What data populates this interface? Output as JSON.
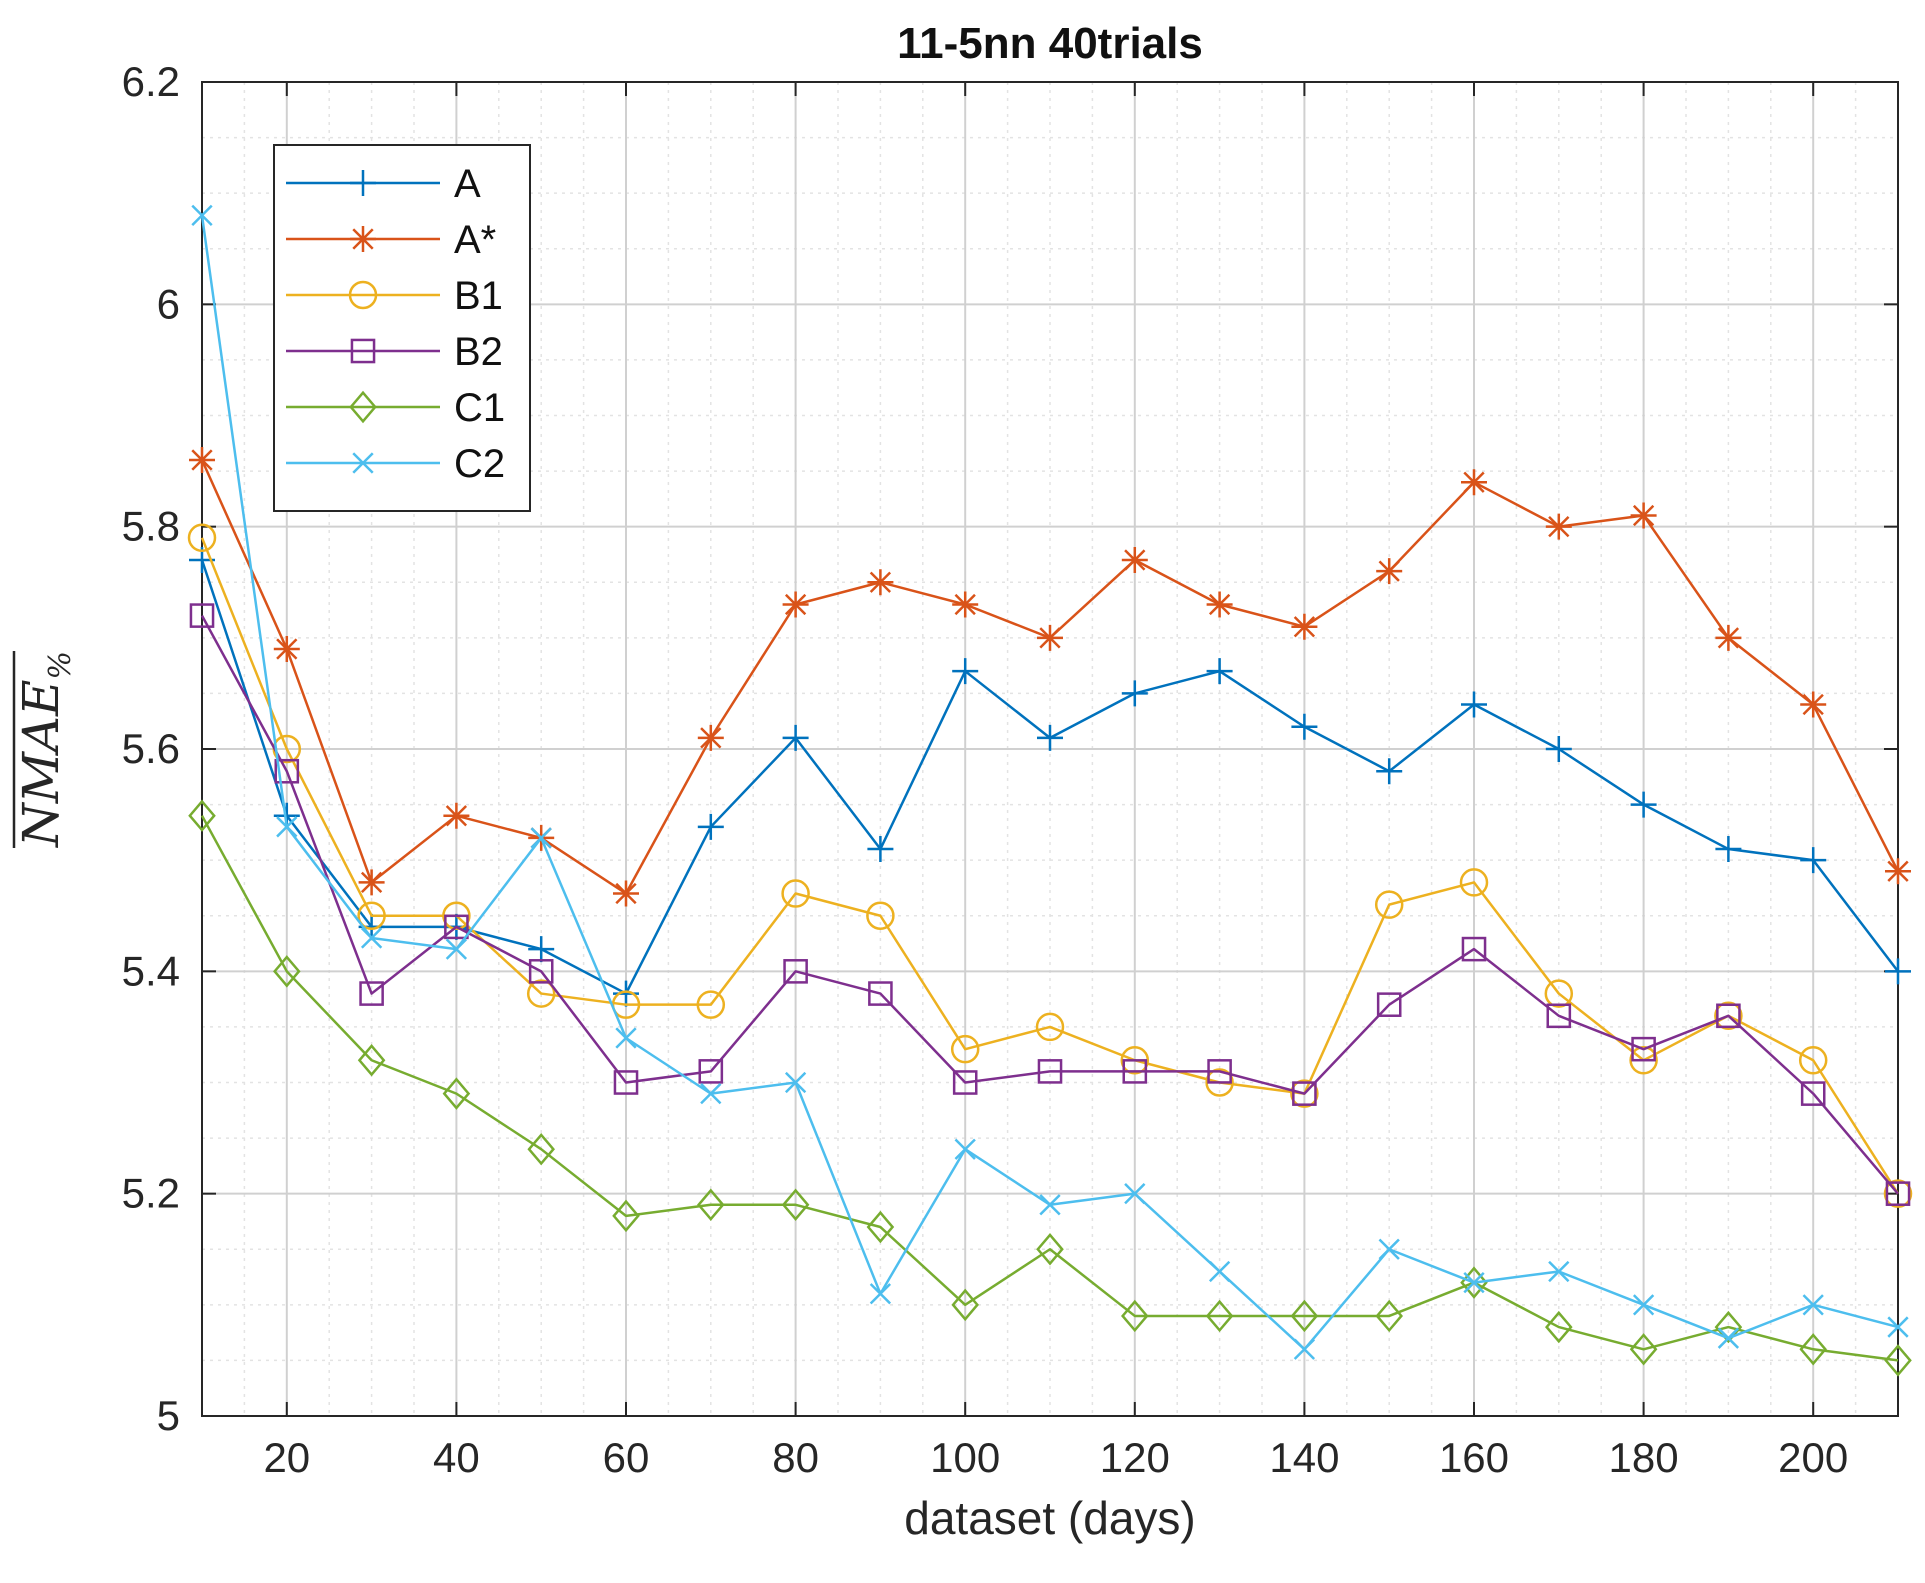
{
  "chart_data": {
    "type": "line",
    "title": "11-5nn 40trials",
    "xlabel": "dataset (days)",
    "ylabel_main": "NMAE",
    "ylabel_sub": "%",
    "xlim": [
      10,
      210
    ],
    "ylim": [
      5,
      6.2
    ],
    "xticks": [
      20,
      40,
      60,
      80,
      100,
      120,
      140,
      160,
      180,
      200
    ],
    "yticks": [
      5,
      5.2,
      5.4,
      5.6,
      5.8,
      6,
      6.2
    ],
    "ytick_labels": [
      "5",
      "5.2",
      "5.4",
      "5.6",
      "5.8",
      "6",
      "6.2"
    ],
    "grid": true,
    "minor_grid": true,
    "legend_position": "top-left",
    "x": [
      10,
      20,
      30,
      40,
      50,
      60,
      70,
      80,
      90,
      100,
      110,
      120,
      130,
      140,
      150,
      160,
      170,
      180,
      190,
      200,
      210
    ],
    "series": [
      {
        "name": "A",
        "color": "#0072BD",
        "marker": "plus",
        "values": [
          5.77,
          5.54,
          5.44,
          5.44,
          5.42,
          5.38,
          5.53,
          5.61,
          5.51,
          5.67,
          5.61,
          5.65,
          5.67,
          5.62,
          5.58,
          5.64,
          5.6,
          5.55,
          5.51,
          5.5,
          5.4
        ]
      },
      {
        "name": "A*",
        "color": "#D95319",
        "marker": "asterisk",
        "values": [
          5.86,
          5.69,
          5.48,
          5.54,
          5.52,
          5.47,
          5.61,
          5.73,
          5.75,
          5.73,
          5.7,
          5.77,
          5.73,
          5.71,
          5.76,
          5.84,
          5.8,
          5.81,
          5.7,
          5.64,
          5.49
        ]
      },
      {
        "name": "B1",
        "color": "#EDB120",
        "marker": "circle",
        "values": [
          5.79,
          5.6,
          5.45,
          5.45,
          5.38,
          5.37,
          5.37,
          5.47,
          5.45,
          5.33,
          5.35,
          5.32,
          5.3,
          5.29,
          5.46,
          5.48,
          5.38,
          5.32,
          5.36,
          5.32,
          5.2
        ]
      },
      {
        "name": "B2",
        "color": "#7E2F8E",
        "marker": "square",
        "values": [
          5.72,
          5.58,
          5.38,
          5.44,
          5.4,
          5.3,
          5.31,
          5.4,
          5.38,
          5.3,
          5.31,
          5.31,
          5.31,
          5.29,
          5.37,
          5.42,
          5.36,
          5.33,
          5.36,
          5.29,
          5.2
        ]
      },
      {
        "name": "C1",
        "color": "#77AC30",
        "marker": "diamond",
        "values": [
          5.54,
          5.4,
          5.32,
          5.29,
          5.24,
          5.18,
          5.19,
          5.19,
          5.17,
          5.1,
          5.15,
          5.09,
          5.09,
          5.09,
          5.09,
          5.12,
          5.08,
          5.06,
          5.08,
          5.06,
          5.05
        ]
      },
      {
        "name": "C2",
        "color": "#4DBEEE",
        "marker": "x",
        "values": [
          6.08,
          5.53,
          5.43,
          5.42,
          5.52,
          5.34,
          5.29,
          5.3,
          5.11,
          5.24,
          5.19,
          5.2,
          5.13,
          5.06,
          5.15,
          5.12,
          5.13,
          5.1,
          5.07,
          5.1,
          5.08
        ]
      }
    ]
  }
}
